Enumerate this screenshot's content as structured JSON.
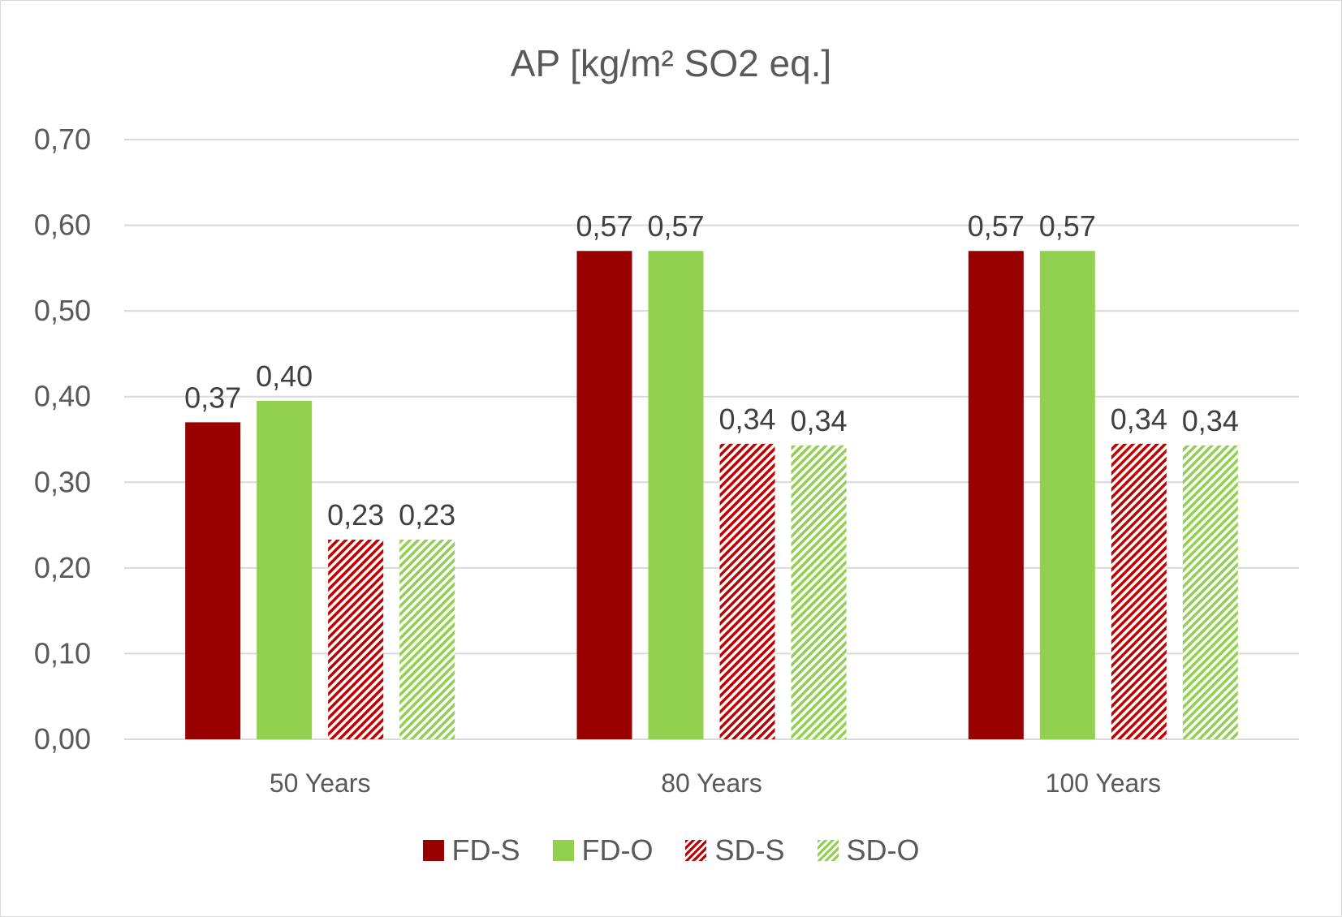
{
  "chart_data": {
    "type": "bar",
    "title": "AP [kg/m² SO2 eq.]",
    "categories": [
      "50 Years",
      "80 Years",
      "100 Years"
    ],
    "series": [
      {
        "name": "FD-S",
        "values": [
          0.37,
          0.57,
          0.57
        ],
        "labels": [
          "0,37",
          "0,57",
          "0,57"
        ],
        "color": "#990000",
        "pattern": "solid"
      },
      {
        "name": "FD-O",
        "values": [
          0.395,
          0.57,
          0.57
        ],
        "labels": [
          "0,40",
          "0,57",
          "0,57"
        ],
        "color": "#92d050",
        "pattern": "solid"
      },
      {
        "name": "SD-S",
        "values": [
          0.233,
          0.345,
          0.345
        ],
        "labels": [
          "0,23",
          "0,34",
          "0,34"
        ],
        "color": "#c00000",
        "pattern": "hatch"
      },
      {
        "name": "SD-O",
        "values": [
          0.233,
          0.343,
          0.343
        ],
        "labels": [
          "0,23",
          "0,34",
          "0,34"
        ],
        "color": "#92d050",
        "pattern": "hatch"
      }
    ],
    "yticks": [
      "0,00",
      "0,10",
      "0,20",
      "0,30",
      "0,40",
      "0,50",
      "0,60",
      "0,70"
    ],
    "ylim": [
      0,
      0.7
    ],
    "xlabel": "",
    "ylabel": "",
    "grid": true,
    "legend_position": "bottom"
  }
}
